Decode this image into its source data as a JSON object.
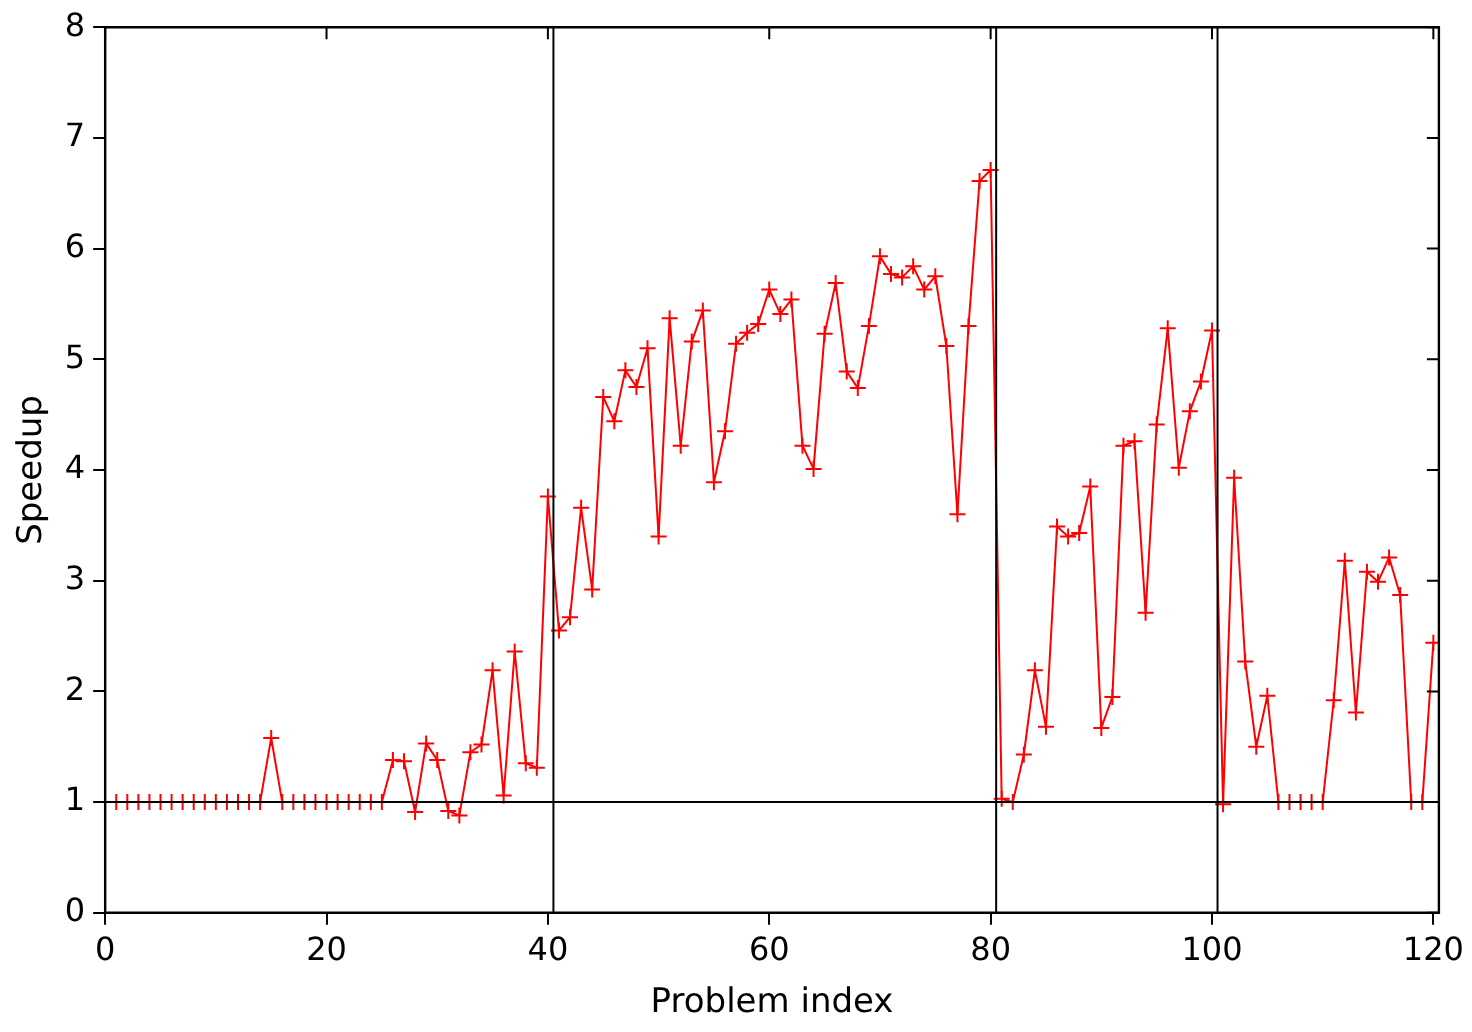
{
  "chart_data": {
    "type": "line",
    "xlabel": "Problem index",
    "ylabel": "Speedup",
    "x": [
      1,
      2,
      3,
      4,
      5,
      6,
      7,
      8,
      9,
      10,
      11,
      12,
      13,
      14,
      15,
      16,
      17,
      18,
      19,
      20,
      21,
      22,
      23,
      24,
      25,
      26,
      27,
      28,
      29,
      30,
      31,
      32,
      33,
      34,
      35,
      36,
      37,
      38,
      39,
      40,
      41,
      42,
      43,
      44,
      45,
      46,
      47,
      48,
      49,
      50,
      51,
      52,
      53,
      54,
      55,
      56,
      57,
      58,
      59,
      60,
      61,
      62,
      63,
      64,
      65,
      66,
      67,
      68,
      69,
      70,
      71,
      72,
      73,
      74,
      75,
      76,
      77,
      78,
      79,
      80,
      81,
      82,
      83,
      84,
      85,
      86,
      87,
      88,
      89,
      90,
      91,
      92,
      93,
      94,
      95,
      96,
      97,
      98,
      99,
      100,
      101,
      102,
      103,
      104,
      105,
      106,
      107,
      108,
      109,
      110,
      111,
      112,
      113,
      114,
      115,
      116,
      117,
      118,
      119,
      120
    ],
    "series": [
      {
        "color": "#ff0000",
        "values": [
          1,
          1,
          1,
          1,
          1,
          1,
          1,
          1,
          1,
          1,
          1,
          1,
          1,
          1,
          1.58,
          1,
          1,
          1,
          1,
          1,
          1,
          1,
          1,
          1,
          1,
          1.38,
          1.37,
          0.91,
          1.53,
          1.38,
          0.92,
          0.88,
          1.45,
          1.52,
          2.19,
          1.06,
          2.36,
          1.35,
          1.31,
          3.76,
          2.55,
          2.67,
          3.66,
          2.92,
          4.66,
          4.44,
          4.9,
          4.75,
          5.1,
          3.4,
          5.37,
          4.22,
          5.16,
          5.44,
          3.89,
          4.35,
          5.14,
          5.24,
          5.32,
          5.63,
          5.41,
          5.54,
          4.22,
          4.01,
          5.23,
          5.69,
          4.89,
          4.74,
          5.3,
          5.93,
          5.77,
          5.74,
          5.84,
          5.63,
          5.75,
          5.12,
          3.6,
          5.3,
          6.61,
          6.71,
          1.03,
          1,
          1.43,
          2.19,
          1.68,
          3.49,
          3.4,
          3.43,
          3.85,
          1.67,
          1.95,
          4.22,
          4.26,
          2.71,
          4.41,
          5.28,
          4.02,
          4.53,
          4.8,
          5.26,
          0.98,
          3.93,
          2.27,
          1.5,
          1.96,
          1,
          1,
          1,
          1,
          1,
          1.92,
          3.18,
          1.81,
          3.08,
          2.99,
          3.21,
          2.87,
          1,
          1,
          2.44
        ]
      }
    ],
    "xlim": [
      0,
      120.5
    ],
    "xticks": [
      0,
      20,
      40,
      60,
      80,
      100,
      120
    ],
    "ylim": [
      0,
      8
    ],
    "yticks": [
      0,
      1,
      2,
      3,
      4,
      5,
      6,
      7,
      8
    ],
    "grid": false,
    "legend": false,
    "marker": "cross",
    "line_style": "solid",
    "ref_lines": [
      {
        "axis": "x",
        "value": 40.5,
        "color": "#000000"
      },
      {
        "axis": "x",
        "value": 80.5,
        "color": "#000000"
      },
      {
        "axis": "x",
        "value": 100.5,
        "color": "#000000"
      },
      {
        "axis": "y",
        "value": 1,
        "color": "#000000"
      }
    ]
  }
}
